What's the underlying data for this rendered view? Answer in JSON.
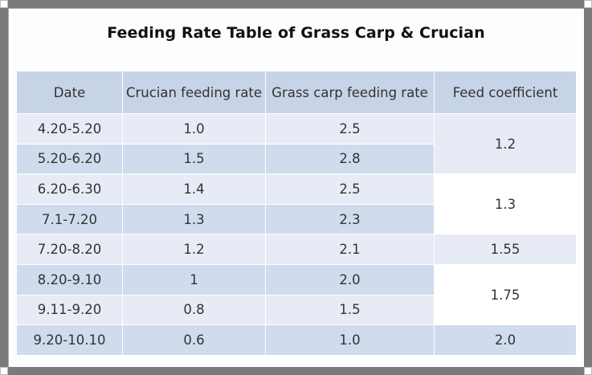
{
  "title": "Feeding Rate Table of Grass Carp & Crucian",
  "columns": [
    "Date",
    "Crucian feeding rate",
    "Grass carp feeding rate",
    "Feed coefficient"
  ],
  "rows": [
    {
      "date": "4.20-5.20",
      "crucian": "1.0",
      "grass_carp": "2.5"
    },
    {
      "date": "5.20-6.20",
      "crucian": "1.5",
      "grass_carp": "2.8"
    },
    {
      "date": "6.20-6.30",
      "crucian": "1.4",
      "grass_carp": "2.5"
    },
    {
      "date": "7.1-7.20",
      "crucian": "1.3",
      "grass_carp": "2.3"
    },
    {
      "date": "7.20-8.20",
      "crucian": "1.2",
      "grass_carp": "2.1"
    },
    {
      "date": "8.20-9.10",
      "crucian": "1",
      "grass_carp": "2.0"
    },
    {
      "date": "9.11-9.20",
      "crucian": "0.8",
      "grass_carp": "1.5"
    },
    {
      "date": "9.20-10.10",
      "crucian": "0.6",
      "grass_carp": "1.0"
    }
  ],
  "feed_coefficients": [
    {
      "value": "1.2",
      "rows": [
        "4.20-5.20",
        "5.20-6.20"
      ]
    },
    {
      "value": "1.3",
      "rows": [
        "6.20-6.30",
        "7.1-7.20"
      ]
    },
    {
      "value": "1.55",
      "rows": [
        "7.20-8.20"
      ]
    },
    {
      "value": "1.75",
      "rows": [
        "8.20-9.10",
        "9.11-9.20"
      ]
    },
    {
      "value": "2.0",
      "rows": [
        "9.20-10.10"
      ]
    }
  ]
}
